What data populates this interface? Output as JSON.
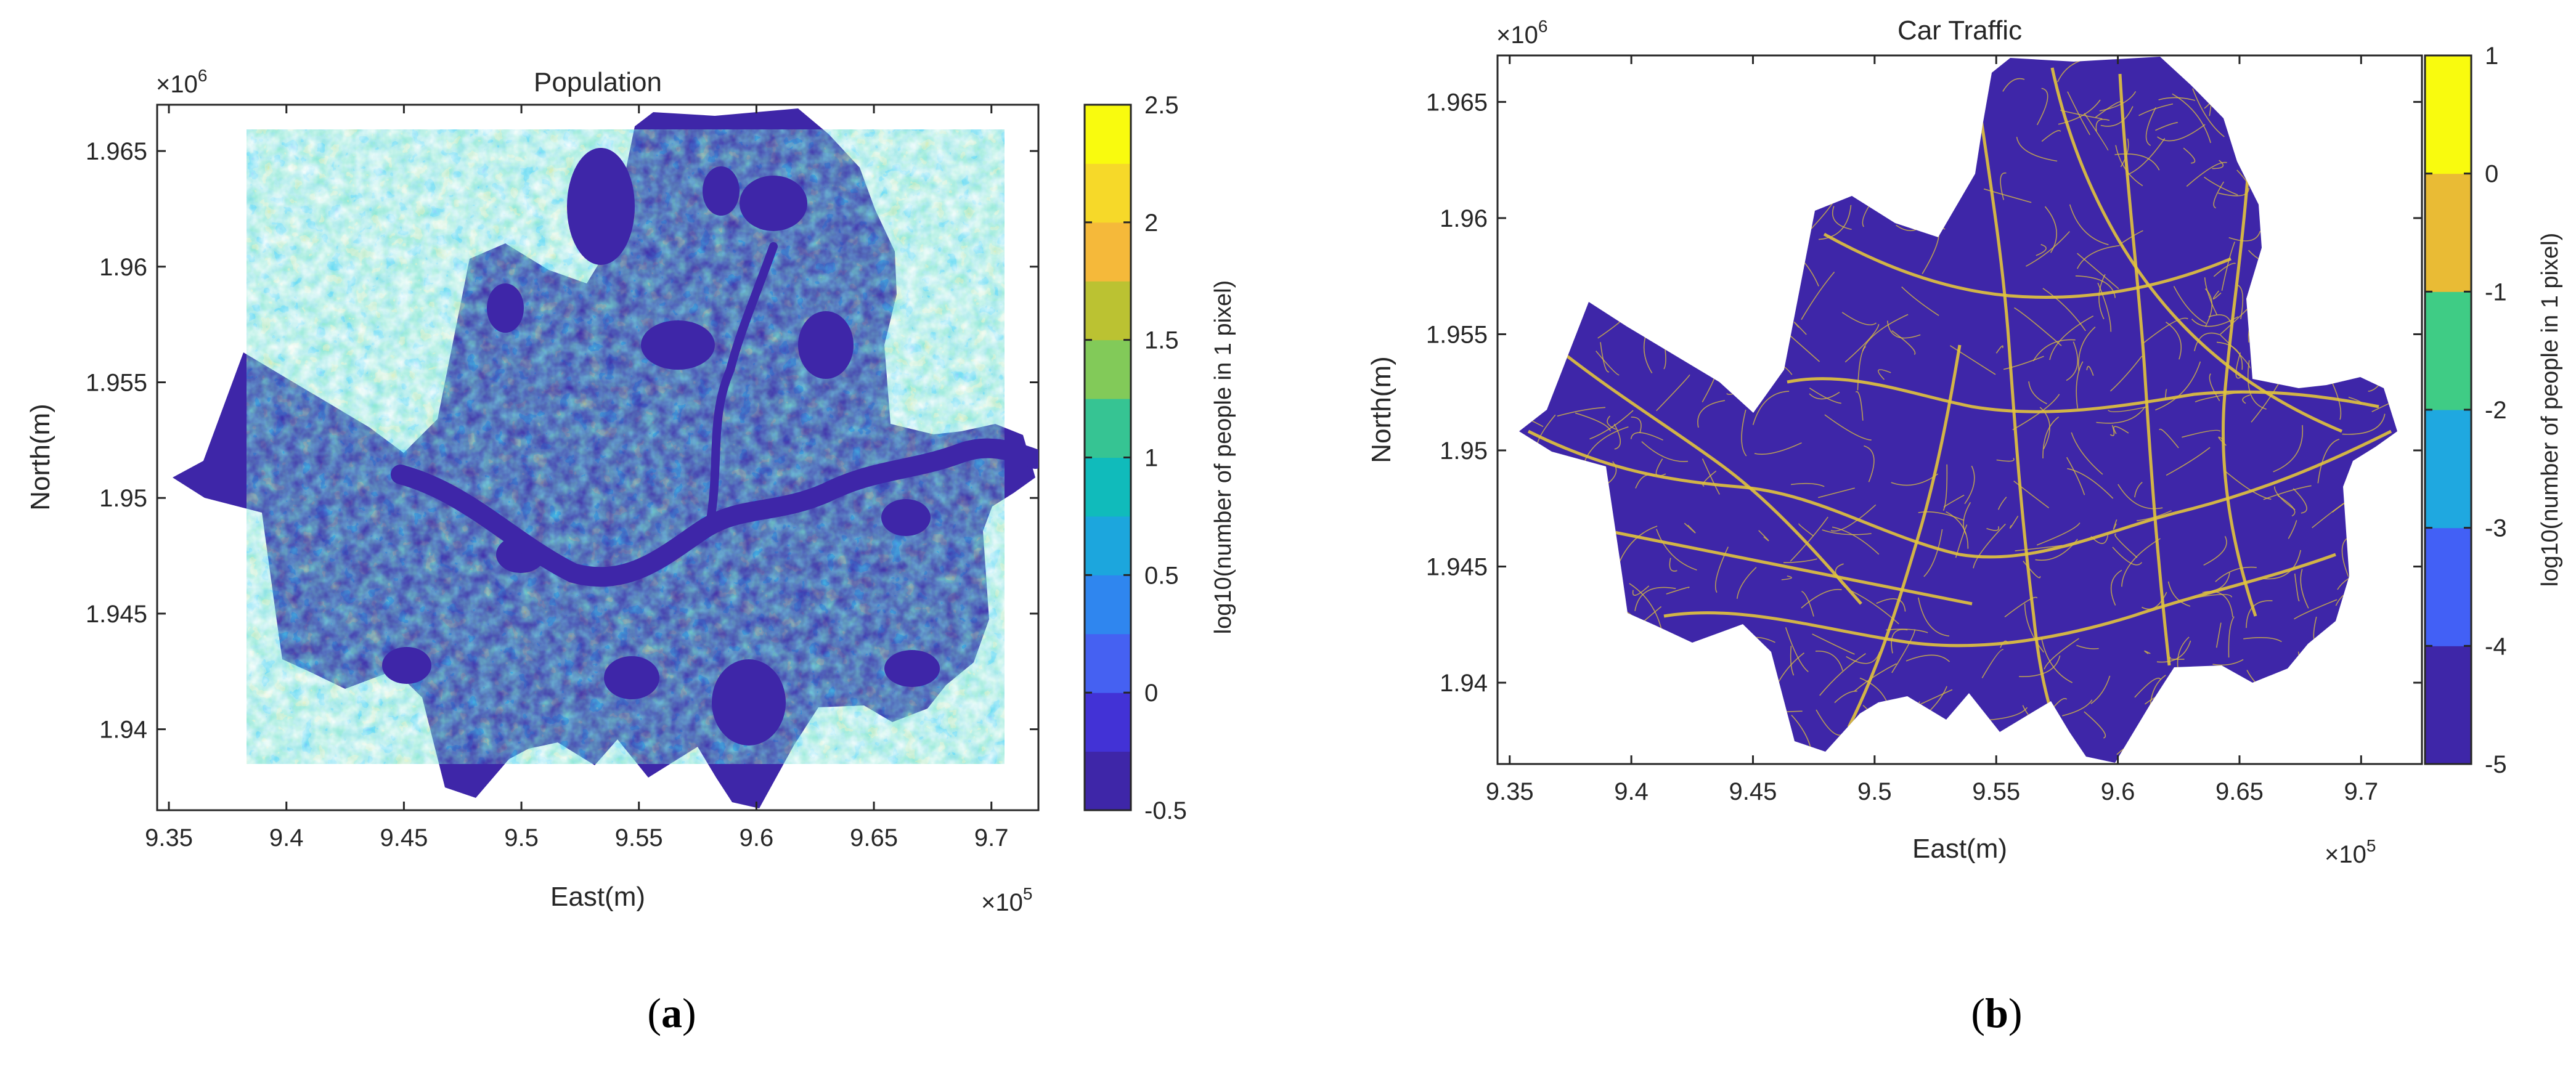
{
  "chart_data": [
    {
      "type": "heatmap",
      "title": "Population",
      "xlabel": "East(m)",
      "ylabel": "North(m)",
      "x_exponent_label": "×10",
      "x_exponent_power": "5",
      "y_exponent_label": "×10",
      "y_exponent_power": "6",
      "xlim": [
        9.345,
        9.72
      ],
      "ylim": [
        1.9365,
        1.967
      ],
      "xticks": [
        "9.35",
        "9.4",
        "9.45",
        "9.5",
        "9.55",
        "9.6",
        "9.65",
        "9.7"
      ],
      "xtick_values": [
        9.35,
        9.4,
        9.45,
        9.5,
        9.55,
        9.6,
        9.65,
        9.7
      ],
      "yticks": [
        "1.94",
        "1.945",
        "1.95",
        "1.955",
        "1.96",
        "1.965"
      ],
      "ytick_values": [
        1.94,
        1.945,
        1.95,
        1.955,
        1.96,
        1.965
      ],
      "colorbar": {
        "label": "log10(number of people in 1 pixel)",
        "range": [
          -0.5,
          2.5
        ],
        "ticks": [
          "-0.5",
          "0",
          "0.5",
          "1",
          "1.5",
          "2",
          "2.5"
        ],
        "tick_values": [
          -0.5,
          0,
          0.5,
          1,
          1.5,
          2,
          2.5
        ],
        "colors": [
          "#3e26a8",
          "#4232d6",
          "#4561f2",
          "#2f86ef",
          "#1ca6dd",
          "#10bbbb",
          "#36c493",
          "#82ca59",
          "#bbc232",
          "#f5b93a",
          "#f6d929",
          "#f9fb0e"
        ]
      },
      "caption_label": "a",
      "background_color": "#3e26a8"
    },
    {
      "type": "heatmap",
      "title": "Car Traffic",
      "xlabel": "East(m)",
      "ylabel": "North(m)",
      "x_exponent_label": "×10",
      "x_exponent_power": "5",
      "y_exponent_label": "×10",
      "y_exponent_power": "6",
      "xlim": [
        9.345,
        9.725
      ],
      "ylim": [
        1.9365,
        1.967
      ],
      "xticks": [
        "9.35",
        "9.4",
        "9.45",
        "9.5",
        "9.55",
        "9.6",
        "9.65",
        "9.7"
      ],
      "xtick_values": [
        9.35,
        9.4,
        9.45,
        9.5,
        9.55,
        9.6,
        9.65,
        9.7
      ],
      "yticks": [
        "1.94",
        "1.945",
        "1.95",
        "1.955",
        "1.96",
        "1.965"
      ],
      "ytick_values": [
        1.94,
        1.945,
        1.95,
        1.955,
        1.96,
        1.965
      ],
      "colorbar": {
        "label": "log10(number of people in 1 pixel)",
        "range": [
          -5,
          1
        ],
        "ticks": [
          "-5",
          "-4",
          "-3",
          "-2",
          "-1",
          "0",
          "1"
        ],
        "tick_values": [
          -5,
          -4,
          -3,
          -2,
          -1,
          0,
          1
        ],
        "colors": [
          "#3e26a8",
          "#4260f6",
          "#1fa8e0",
          "#3fcc85",
          "#e9bb35",
          "#f9fb0e"
        ]
      },
      "caption_label": "b",
      "background_color": "#3e26a8",
      "road_color": "#e2c43c"
    }
  ]
}
